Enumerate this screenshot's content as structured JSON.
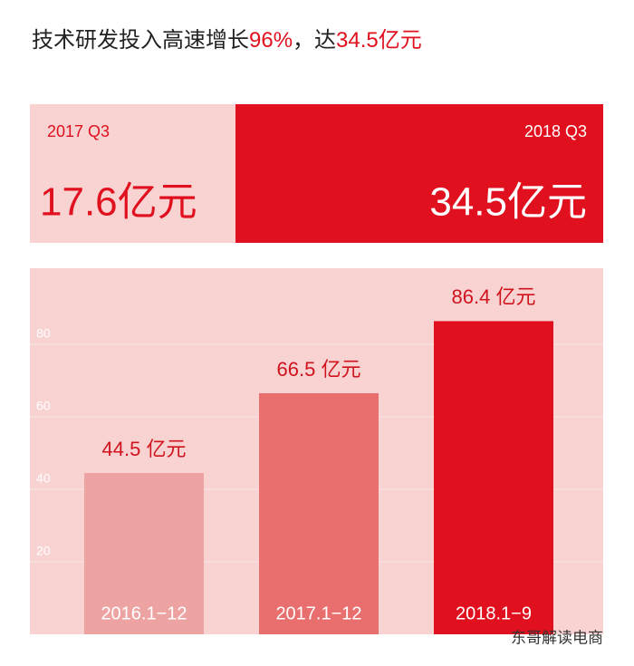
{
  "header": {
    "title_parts": [
      "技术研发投入高速增长",
      "96%",
      "，达",
      "34.5亿元"
    ]
  },
  "comparison": [
    {
      "label": "2017 Q3",
      "value_label": "17.6亿元"
    },
    {
      "label": "2018 Q3",
      "value_label": "34.5亿元"
    }
  ],
  "chart_data": {
    "type": "bar",
    "categories": [
      "2016.1−12",
      "2017.1−12",
      "2018.1−9"
    ],
    "values": [
      44.5,
      66.5,
      86.4
    ],
    "value_labels": [
      "44.5 亿元",
      "66.5 亿元",
      "86.4 亿元"
    ],
    "colors": [
      "#eea3a3",
      "#e96e6e",
      "#e0101e"
    ],
    "ylim": [
      0,
      100
    ],
    "yticks": [
      20,
      40,
      60,
      80
    ],
    "grid": true
  },
  "watermark": "东哥解读电商"
}
